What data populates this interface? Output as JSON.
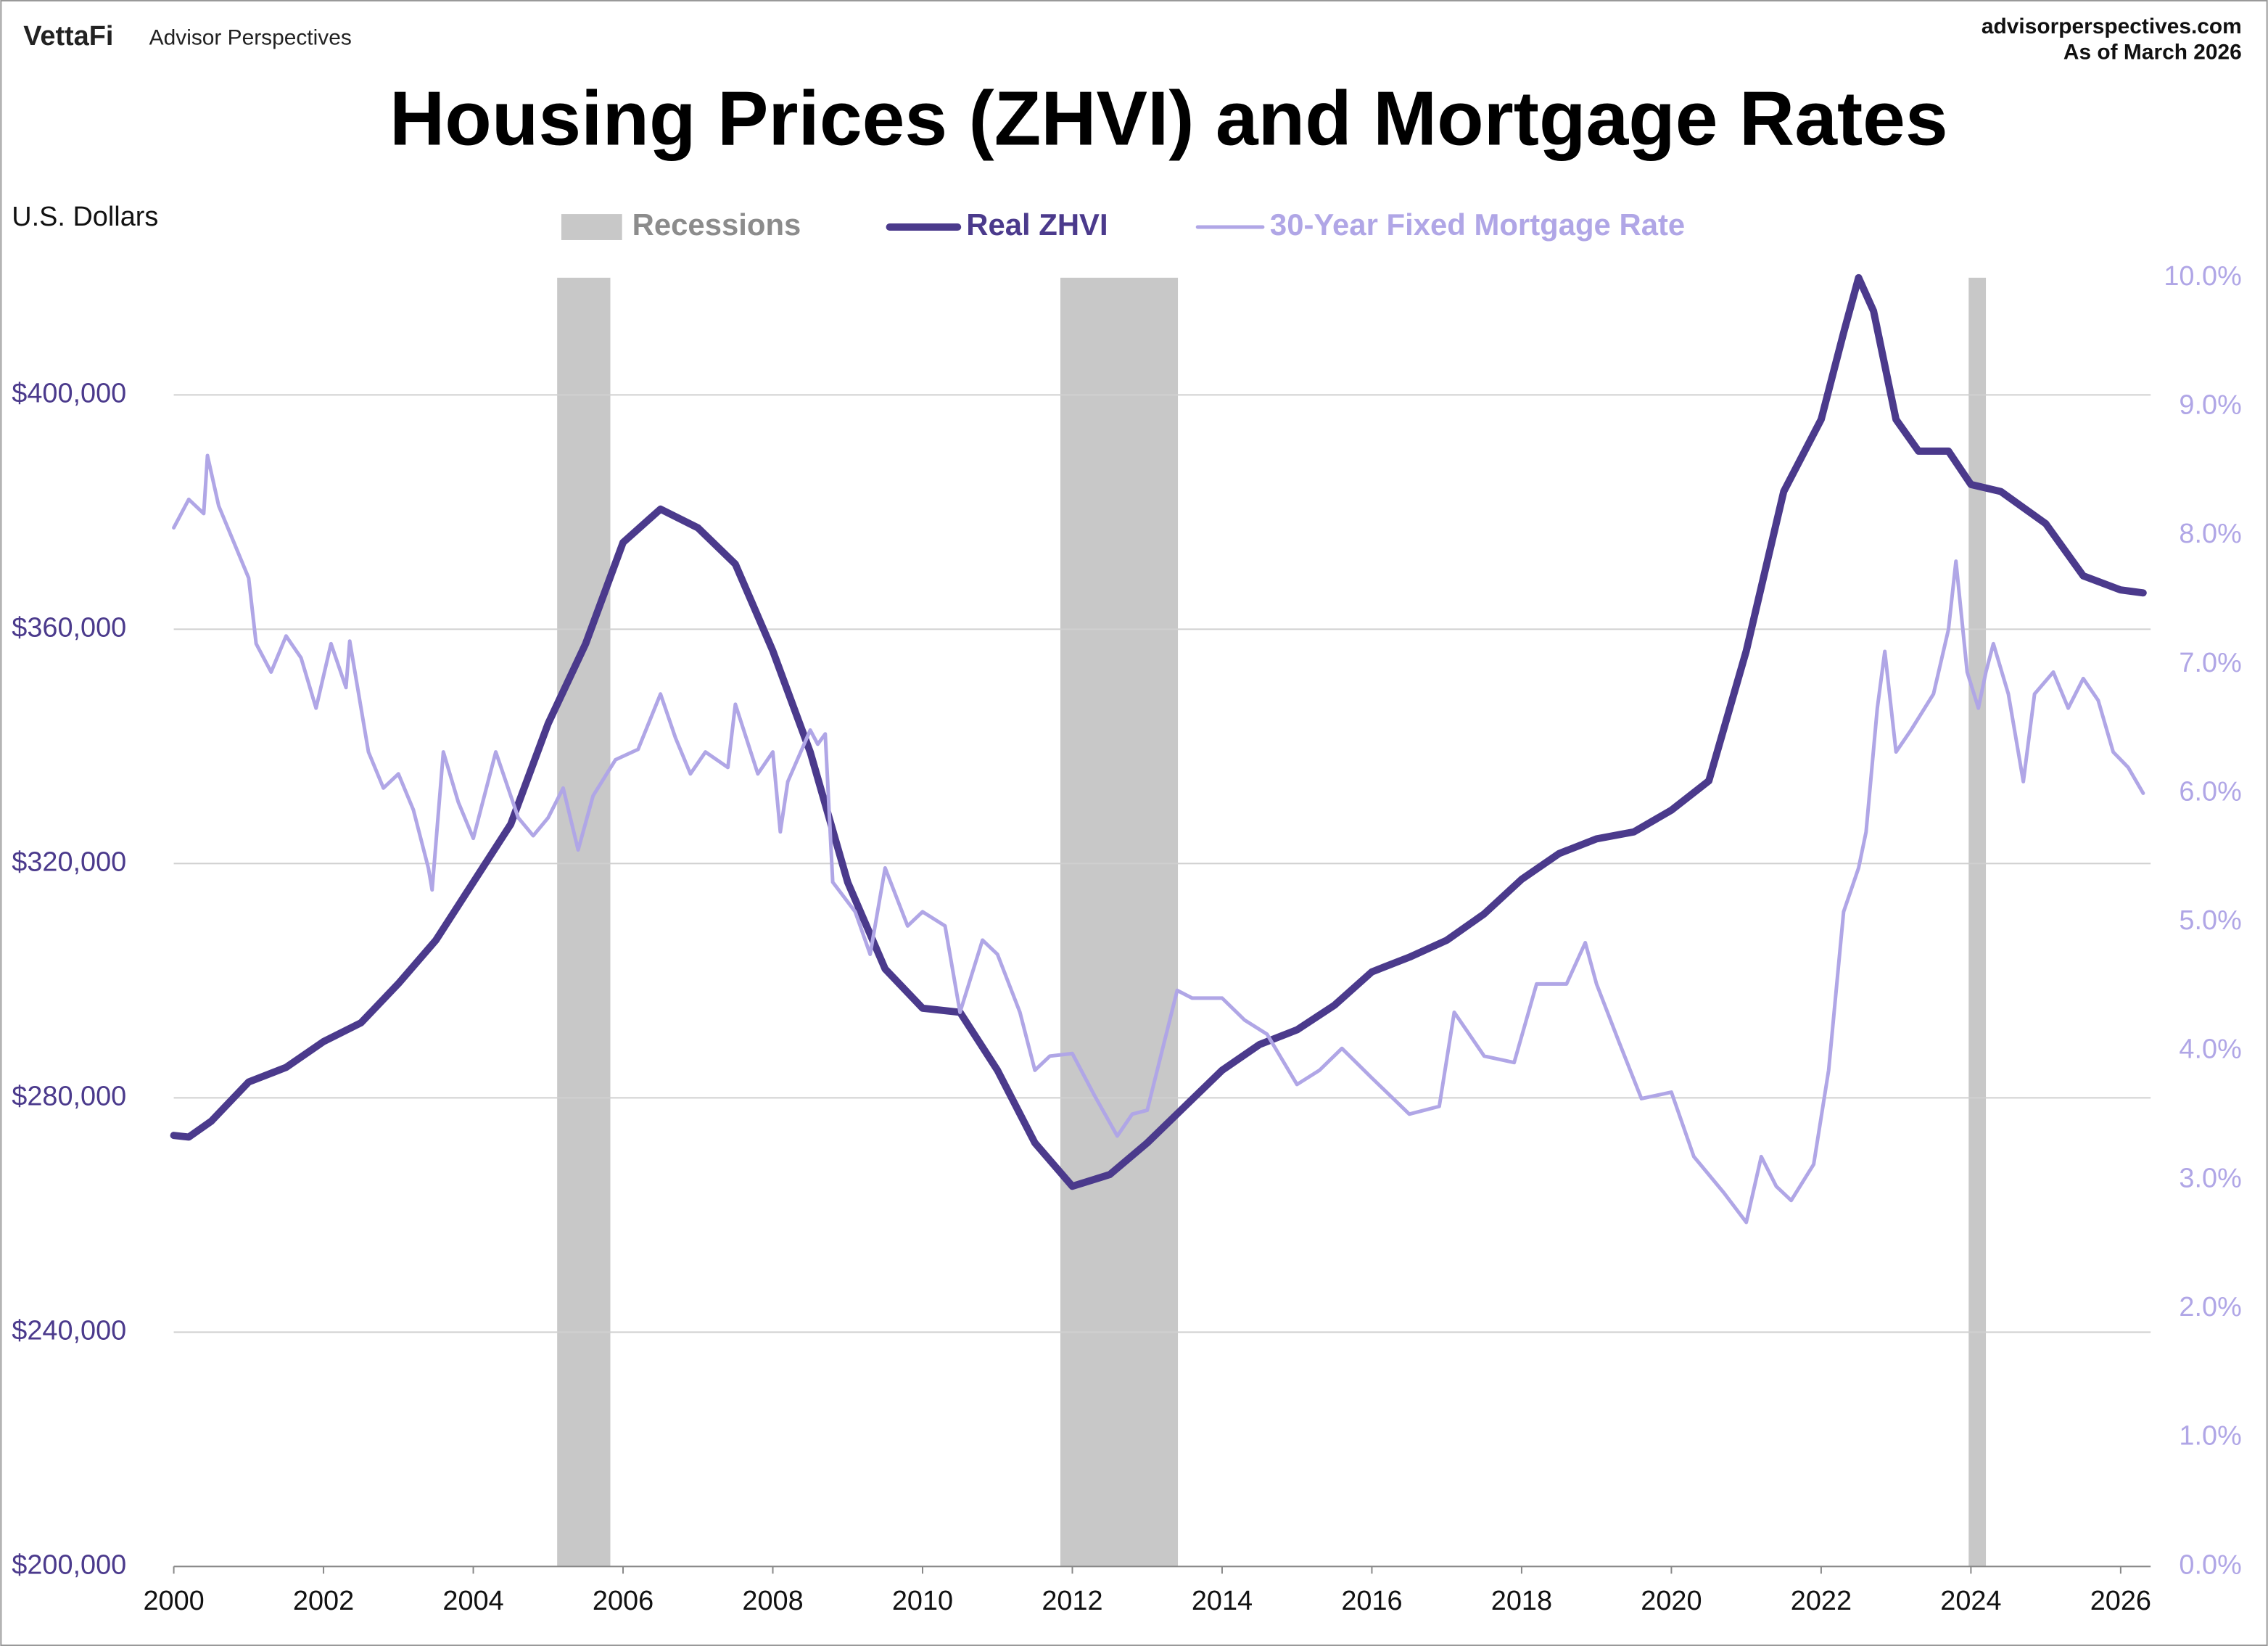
{
  "header": {
    "brand": "VettaFi",
    "subtitle": "Advisor Perspectives",
    "site": "advisorperspectives.com",
    "date": "As of March 2026"
  },
  "chart_data": {
    "type": "line",
    "title": "Housing Prices (ZHVI) and Mortgage Rates",
    "y_label": "U.S. Dollars",
    "xlim": [
      2000,
      2026.4
    ],
    "xticks": [
      2000,
      2002,
      2004,
      2006,
      2008,
      2010,
      2012,
      2014,
      2016,
      2018,
      2020,
      2022,
      2024,
      2026
    ],
    "ylim": [
      200000,
      420000
    ],
    "yticks": [
      {
        "value": 200000,
        "label": "$200,000"
      },
      {
        "value": 240000,
        "label": "$240,000"
      },
      {
        "value": 280000,
        "label": "$280,000"
      },
      {
        "value": 320000,
        "label": "$320,000"
      },
      {
        "value": 360000,
        "label": "$360,000"
      },
      {
        "value": 400000,
        "label": "$400,000"
      }
    ],
    "y2lim": [
      0,
      10
    ],
    "y2ticks": [
      {
        "value": 0,
        "label": "0.0%"
      },
      {
        "value": 1,
        "label": "1.0%"
      },
      {
        "value": 2,
        "label": "2.0%"
      },
      {
        "value": 3,
        "label": "3.0%"
      },
      {
        "value": 4,
        "label": "4.0%"
      },
      {
        "value": 5,
        "label": "5.0%"
      },
      {
        "value": 6,
        "label": "6.0%"
      },
      {
        "value": 7,
        "label": "7.0%"
      },
      {
        "value": 8,
        "label": "8.0%"
      },
      {
        "value": 9,
        "label": "9.0%"
      },
      {
        "value": 10,
        "label": "10.0%"
      }
    ],
    "grid": true,
    "recessions": {
      "name": "Recessions",
      "color": "#c8c8c8",
      "ranges": [
        [
          2005.12,
          2005.83
        ],
        [
          2011.84,
          2013.41
        ],
        [
          2023.97,
          2024.2
        ]
      ]
    },
    "series": [
      {
        "name": "Real ZHVI",
        "color": "#4b3a8c",
        "axis": "y",
        "x": [
          2000,
          2000.2,
          2000.5,
          2001,
          2001.5,
          2002,
          2002.5,
          2003,
          2003.5,
          2004,
          2004.5,
          2005,
          2005.5,
          2006,
          2006.5,
          2007,
          2007.5,
          2008,
          2008.5,
          2009,
          2009.5,
          2010,
          2010.5,
          2011,
          2011.5,
          2012,
          2012.5,
          2013,
          2013.5,
          2014,
          2014.5,
          2015,
          2015.5,
          2016,
          2016.5,
          2017,
          2017.5,
          2018,
          2018.5,
          2019,
          2019.5,
          2020,
          2020.5,
          2021,
          2021.5,
          2022,
          2022.3,
          2022.5,
          2022.7,
          2023,
          2023.3,
          2023.7,
          2024,
          2024.4,
          2025,
          2025.5,
          2026,
          2026.3
        ],
        "values": [
          273580,
          273300,
          276000,
          282700,
          285200,
          289600,
          292800,
          299500,
          306900,
          316800,
          326700,
          343900,
          357500,
          374800,
          380500,
          377300,
          371100,
          356300,
          339000,
          316800,
          302000,
          295300,
          294600,
          284700,
          272300,
          264900,
          266900,
          272300,
          278500,
          284700,
          289100,
          291600,
          295800,
          301500,
          304000,
          306900,
          311400,
          317300,
          321700,
          324200,
          325400,
          329100,
          334100,
          356300,
          383500,
          395800,
          410600,
          420000,
          414300,
          395800,
          390400,
          390400,
          384700,
          383500,
          378000,
          369100,
          366700,
          366200
        ]
      },
      {
        "name": "30-Year Fixed Mortgage Rate",
        "color": "#b0a6e6",
        "axis": "y2",
        "x": [
          2000,
          2000.2,
          2000.4,
          2000.45,
          2000.6,
          2000.8,
          2001,
          2001.1,
          2001.3,
          2001.5,
          2001.7,
          2001.9,
          2002.1,
          2002.3,
          2002.35,
          2002.6,
          2002.8,
          2003,
          2003.2,
          2003.4,
          2003.45,
          2003.6,
          2003.8,
          2004,
          2004.3,
          2004.6,
          2004.8,
          2005,
          2005.2,
          2005.4,
          2005.6,
          2005.9,
          2006.2,
          2006.5,
          2006.7,
          2006.9,
          2007.1,
          2007.4,
          2007.5,
          2007.8,
          2008,
          2008.1,
          2008.2,
          2008.5,
          2008.6,
          2008.7,
          2008.8,
          2009.1,
          2009.3,
          2009.5,
          2009.8,
          2010,
          2010.3,
          2010.5,
          2010.8,
          2011,
          2011.3,
          2011.5,
          2011.7,
          2012,
          2012.3,
          2012.6,
          2012.8,
          2013,
          2013.4,
          2013.6,
          2014,
          2014.3,
          2014.6,
          2015,
          2015.3,
          2015.6,
          2016,
          2016.5,
          2016.9,
          2017.1,
          2017.5,
          2017.9,
          2018.2,
          2018.6,
          2018.85,
          2019,
          2019.3,
          2019.6,
          2020,
          2020.3,
          2020.7,
          2021,
          2021.2,
          2021.4,
          2021.6,
          2021.9,
          2022.1,
          2022.3,
          2022.5,
          2022.6,
          2022.75,
          2022.85,
          2023,
          2023.2,
          2023.5,
          2023.7,
          2023.8,
          2023.95,
          2024.1,
          2024.2,
          2024.3,
          2024.5,
          2024.7,
          2024.85,
          2025.1,
          2025.3,
          2025.5,
          2025.7,
          2025.9,
          2026.1,
          2026.3
        ],
        "values": [
          8.06,
          8.28,
          8.17,
          8.62,
          8.23,
          7.95,
          7.67,
          7.16,
          6.94,
          7.22,
          7.05,
          6.66,
          7.16,
          6.82,
          7.18,
          6.32,
          6.04,
          6.15,
          5.87,
          5.42,
          5.25,
          6.32,
          5.93,
          5.65,
          6.32,
          5.81,
          5.67,
          5.81,
          6.04,
          5.56,
          5.98,
          6.26,
          6.34,
          6.77,
          6.43,
          6.15,
          6.32,
          6.2,
          6.69,
          6.15,
          6.32,
          5.7,
          6.09,
          6.49,
          6.38,
          6.46,
          5.31,
          5.08,
          4.75,
          5.42,
          4.97,
          5.08,
          4.97,
          4.3,
          4.86,
          4.75,
          4.3,
          3.85,
          3.96,
          3.98,
          3.65,
          3.34,
          3.51,
          3.54,
          4.47,
          4.41,
          4.41,
          4.24,
          4.13,
          3.74,
          3.85,
          4.02,
          3.79,
          3.51,
          3.57,
          4.3,
          3.96,
          3.91,
          4.52,
          4.52,
          4.84,
          4.52,
          4.07,
          3.63,
          3.68,
          3.18,
          2.9,
          2.67,
          3.18,
          2.95,
          2.84,
          3.12,
          3.85,
          5.08,
          5.42,
          5.7,
          6.66,
          7.1,
          6.32,
          6.49,
          6.77,
          7.27,
          7.8,
          6.94,
          6.66,
          6.94,
          7.16,
          6.77,
          6.09,
          6.77,
          6.94,
          6.66,
          6.89,
          6.72,
          6.32,
          6.2,
          6.0
        ]
      }
    ]
  }
}
